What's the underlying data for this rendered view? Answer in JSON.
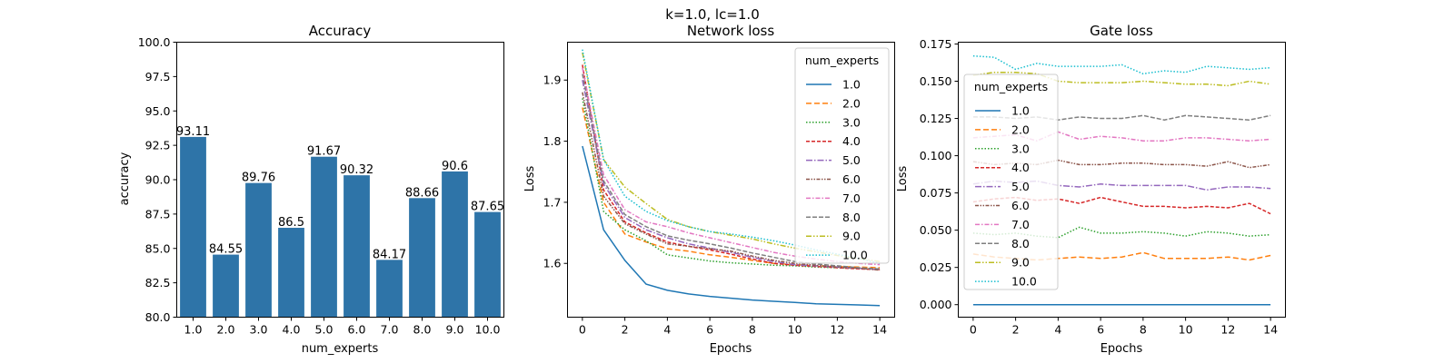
{
  "suptitle": "k=1.0, lc=1.0",
  "chart_data": [
    {
      "type": "bar",
      "title": "Accuracy",
      "xlabel": "num_experts",
      "ylabel": "accuracy",
      "categories": [
        "1.0",
        "2.0",
        "3.0",
        "4.0",
        "5.0",
        "6.0",
        "7.0",
        "8.0",
        "9.0",
        "10.0"
      ],
      "values": [
        93.11,
        84.55,
        89.76,
        86.5,
        91.67,
        90.32,
        84.17,
        88.66,
        90.6,
        87.65
      ],
      "value_labels": [
        "93.11",
        "84.55",
        "89.76",
        "86.5",
        "91.67",
        "90.32",
        "84.17",
        "88.66",
        "90.6",
        "87.65"
      ],
      "ylim": [
        80,
        100
      ],
      "yticks": [
        "80.0",
        "82.5",
        "85.0",
        "87.5",
        "90.0",
        "92.5",
        "95.0",
        "97.5",
        "100.0"
      ],
      "bar_color": "#2e74a8"
    },
    {
      "type": "line",
      "title": "Network loss",
      "xlabel": "Epochs",
      "ylabel": "Loss",
      "xlim": [
        -0.7,
        14.7
      ],
      "ylim": [
        1.512,
        1.962
      ],
      "xticks": [
        "0",
        "2",
        "4",
        "6",
        "8",
        "10",
        "12",
        "14"
      ],
      "yticks": [
        "1.6",
        "1.7",
        "1.8",
        "1.9"
      ],
      "legend": {
        "title": "num_experts",
        "placement": "top-right"
      },
      "x": [
        0,
        1,
        2,
        3,
        4,
        5,
        6,
        7,
        8,
        9,
        10,
        11,
        12,
        13,
        14
      ],
      "series": [
        {
          "name": "1.0",
          "color": "#1f77b4",
          "dash": "",
          "values": [
            1.792,
            1.655,
            1.605,
            1.566,
            1.556,
            1.55,
            1.546,
            1.543,
            1.54,
            1.538,
            1.536,
            1.534,
            1.533,
            1.532,
            1.531
          ]
        },
        {
          "name": "2.0",
          "color": "#ff7f0e",
          "dash": "6,3",
          "values": [
            1.855,
            1.7,
            1.648,
            1.635,
            1.624,
            1.62,
            1.614,
            1.61,
            1.605,
            1.6,
            1.598,
            1.596,
            1.595,
            1.594,
            1.593
          ]
        },
        {
          "name": "3.0",
          "color": "#2ca02c",
          "dash": "1.5,2",
          "values": [
            1.87,
            1.685,
            1.655,
            1.637,
            1.614,
            1.609,
            1.604,
            1.601,
            1.599,
            1.597,
            1.596,
            1.594,
            1.593,
            1.592,
            1.591
          ]
        },
        {
          "name": "4.0",
          "color": "#d62728",
          "dash": "4,2",
          "values": [
            1.925,
            1.72,
            1.668,
            1.65,
            1.635,
            1.628,
            1.622,
            1.615,
            1.607,
            1.6,
            1.597,
            1.595,
            1.593,
            1.591,
            1.59
          ]
        },
        {
          "name": "5.0",
          "color": "#9467bd",
          "dash": "7,2,1.5,2",
          "values": [
            1.9,
            1.73,
            1.675,
            1.655,
            1.642,
            1.632,
            1.625,
            1.618,
            1.61,
            1.603,
            1.598,
            1.596,
            1.594,
            1.592,
            1.59
          ]
        },
        {
          "name": "6.0",
          "color": "#8c564b",
          "dash": "4,1.5,1.5,1.5,1.5,1.5",
          "values": [
            1.88,
            1.71,
            1.665,
            1.648,
            1.632,
            1.628,
            1.624,
            1.62,
            1.612,
            1.605,
            1.6,
            1.597,
            1.594,
            1.592,
            1.589
          ]
        },
        {
          "name": "7.0",
          "color": "#e377c2",
          "dash": "5,2,1.5,2",
          "values": [
            1.92,
            1.745,
            1.688,
            1.668,
            1.66,
            1.65,
            1.642,
            1.634,
            1.626,
            1.618,
            1.612,
            1.607,
            1.603,
            1.6,
            1.598
          ]
        },
        {
          "name": "8.0",
          "color": "#7f7f7f",
          "dash": "5,2",
          "values": [
            1.91,
            1.735,
            1.68,
            1.66,
            1.645,
            1.638,
            1.632,
            1.625,
            1.617,
            1.61,
            1.603,
            1.599,
            1.596,
            1.593,
            1.591
          ]
        },
        {
          "name": "9.0",
          "color": "#bcbd22",
          "dash": "6,2,1.5,2,1.5,2",
          "values": [
            1.945,
            1.77,
            1.725,
            1.698,
            1.672,
            1.66,
            1.652,
            1.646,
            1.64,
            1.632,
            1.625,
            1.619,
            1.613,
            1.608,
            1.603
          ]
        },
        {
          "name": "10.0",
          "color": "#17becf",
          "dash": "1.5,2",
          "values": [
            1.95,
            1.77,
            1.71,
            1.685,
            1.67,
            1.66,
            1.652,
            1.648,
            1.643,
            1.637,
            1.63,
            1.622,
            1.615,
            1.608,
            1.6
          ]
        }
      ]
    },
    {
      "type": "line",
      "title": "Gate loss",
      "xlabel": "Epochs",
      "ylabel": "Loss",
      "xlim": [
        -0.7,
        14.7
      ],
      "ylim": [
        -0.0084,
        0.1762
      ],
      "xticks": [
        "0",
        "2",
        "4",
        "6",
        "8",
        "10",
        "12",
        "14"
      ],
      "yticks": [
        "0.000",
        "0.025",
        "0.050",
        "0.075",
        "0.100",
        "0.125",
        "0.150",
        "0.175"
      ],
      "legend": {
        "title": "num_experts",
        "placement": "center-left"
      },
      "x": [
        0,
        1,
        2,
        3,
        4,
        5,
        6,
        7,
        8,
        9,
        10,
        11,
        12,
        13,
        14
      ],
      "series": [
        {
          "name": "1.0",
          "color": "#1f77b4",
          "dash": "",
          "values": [
            0,
            0,
            0,
            0,
            0,
            0,
            0,
            0,
            0,
            0,
            0,
            0,
            0,
            0,
            0
          ]
        },
        {
          "name": "2.0",
          "color": "#ff7f0e",
          "dash": "6,3",
          "values": [
            0.034,
            0.032,
            0.031,
            0.03,
            0.031,
            0.032,
            0.031,
            0.032,
            0.035,
            0.031,
            0.031,
            0.031,
            0.032,
            0.03,
            0.033
          ]
        },
        {
          "name": "3.0",
          "color": "#2ca02c",
          "dash": "1.5,2",
          "values": [
            0.048,
            0.047,
            0.048,
            0.046,
            0.045,
            0.052,
            0.048,
            0.048,
            0.049,
            0.048,
            0.046,
            0.049,
            0.048,
            0.046,
            0.047
          ]
        },
        {
          "name": "4.0",
          "color": "#d62728",
          "dash": "4,2",
          "values": [
            0.069,
            0.071,
            0.072,
            0.07,
            0.071,
            0.068,
            0.072,
            0.069,
            0.066,
            0.066,
            0.065,
            0.066,
            0.065,
            0.068,
            0.061
          ]
        },
        {
          "name": "5.0",
          "color": "#9467bd",
          "dash": "7,2,1.5,2",
          "values": [
            0.081,
            0.083,
            0.082,
            0.083,
            0.08,
            0.079,
            0.081,
            0.08,
            0.08,
            0.08,
            0.08,
            0.077,
            0.079,
            0.079,
            0.078
          ]
        },
        {
          "name": "6.0",
          "color": "#8c564b",
          "dash": "4,1.5,1.5,1.5,1.5,1.5",
          "values": [
            0.096,
            0.094,
            0.095,
            0.094,
            0.097,
            0.094,
            0.094,
            0.095,
            0.095,
            0.094,
            0.094,
            0.093,
            0.096,
            0.092,
            0.094
          ]
        },
        {
          "name": "7.0",
          "color": "#e377c2",
          "dash": "5,2,1.5,2",
          "values": [
            0.112,
            0.113,
            0.114,
            0.11,
            0.116,
            0.111,
            0.113,
            0.112,
            0.11,
            0.11,
            0.112,
            0.112,
            0.111,
            0.11,
            0.111
          ]
        },
        {
          "name": "8.0",
          "color": "#7f7f7f",
          "dash": "5,2",
          "values": [
            0.126,
            0.126,
            0.125,
            0.126,
            0.124,
            0.126,
            0.125,
            0.125,
            0.127,
            0.124,
            0.127,
            0.126,
            0.125,
            0.124,
            0.127
          ]
        },
        {
          "name": "9.0",
          "color": "#bcbd22",
          "dash": "6,2,1.5,2,1.5,2",
          "values": [
            0.154,
            0.156,
            0.156,
            0.155,
            0.15,
            0.149,
            0.149,
            0.149,
            0.15,
            0.149,
            0.148,
            0.148,
            0.147,
            0.15,
            0.148
          ]
        },
        {
          "name": "10.0",
          "color": "#17becf",
          "dash": "1.5,2",
          "values": [
            0.167,
            0.166,
            0.158,
            0.162,
            0.16,
            0.16,
            0.16,
            0.161,
            0.155,
            0.157,
            0.156,
            0.16,
            0.159,
            0.158,
            0.159
          ]
        }
      ]
    }
  ]
}
